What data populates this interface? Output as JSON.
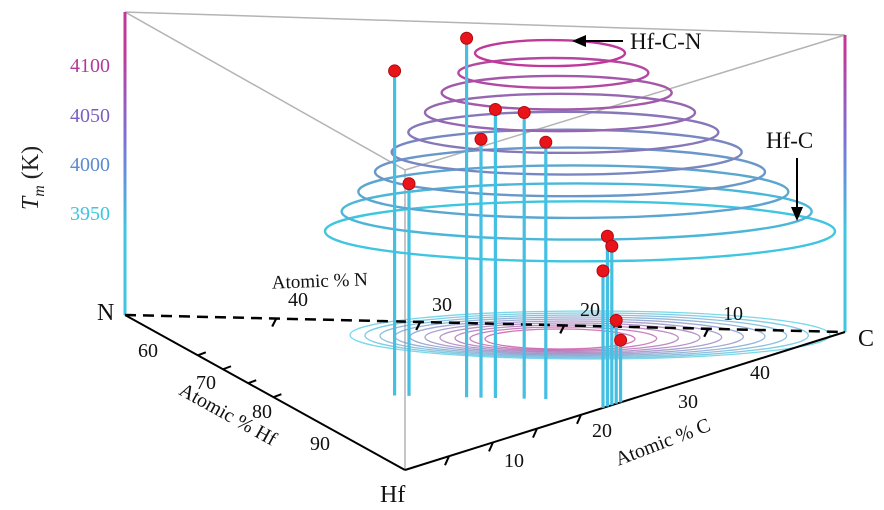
{
  "chart_data": {
    "type": "scatter",
    "title": "",
    "zlabel_sym": "T",
    "zlabel_sub": "m",
    "zlabel_unit": "(K)",
    "z_ticks": [
      "4100",
      "4050",
      "4000",
      "3950"
    ],
    "x_axis": {
      "label": "Atomic % C",
      "ticks": [
        "10",
        "20",
        "30",
        "40"
      ]
    },
    "y_axis": {
      "label": "Atomic % Hf",
      "ticks": [
        "60",
        "70",
        "80",
        "90"
      ]
    },
    "n_axis": {
      "label": "Atomic % N",
      "ticks": [
        "40",
        "30",
        "20",
        "10"
      ]
    },
    "corners": {
      "n": "N",
      "c": "C",
      "hf": "Hf"
    },
    "annotations": {
      "peak": "Hf-C-N",
      "binary": "Hf-C"
    },
    "contour_levels_K": [
      3930,
      3950,
      3970,
      3990,
      4010,
      4030,
      4050,
      4070,
      4090,
      4110
    ],
    "colors": {
      "low": "#3ec6e0",
      "high": "#c0389a",
      "point": "#e8141a",
      "stem": "#45bfe2"
    },
    "points": [
      {
        "n_pct": 22,
        "c_pct": 28,
        "hf_pct": 50,
        "tm_K": 4125
      },
      {
        "n_pct": 32,
        "c_pct": 18,
        "hf_pct": 50,
        "tm_K": 4092
      },
      {
        "n_pct": 18,
        "c_pct": 32,
        "hf_pct": 50,
        "tm_K": 4053
      },
      {
        "n_pct": 14,
        "c_pct": 36,
        "hf_pct": 50,
        "tm_K": 4050
      },
      {
        "n_pct": 20,
        "c_pct": 30,
        "hf_pct": 50,
        "tm_K": 4023
      },
      {
        "n_pct": 11,
        "c_pct": 39,
        "hf_pct": 50,
        "tm_K": 4020
      },
      {
        "n_pct": 30,
        "c_pct": 20,
        "hf_pct": 50,
        "tm_K": 3978
      },
      {
        "n_pct": 0,
        "c_pct": 46,
        "hf_pct": 54,
        "tm_K": 3925
      },
      {
        "n_pct": 0,
        "c_pct": 47,
        "hf_pct": 53,
        "tm_K": 3915
      },
      {
        "n_pct": 0,
        "c_pct": 45,
        "hf_pct": 55,
        "tm_K": 3890
      },
      {
        "n_pct": 0,
        "c_pct": 48,
        "hf_pct": 52,
        "tm_K": 3840
      },
      {
        "n_pct": 0,
        "c_pct": 49,
        "hf_pct": 51,
        "tm_K": 3820
      }
    ]
  }
}
